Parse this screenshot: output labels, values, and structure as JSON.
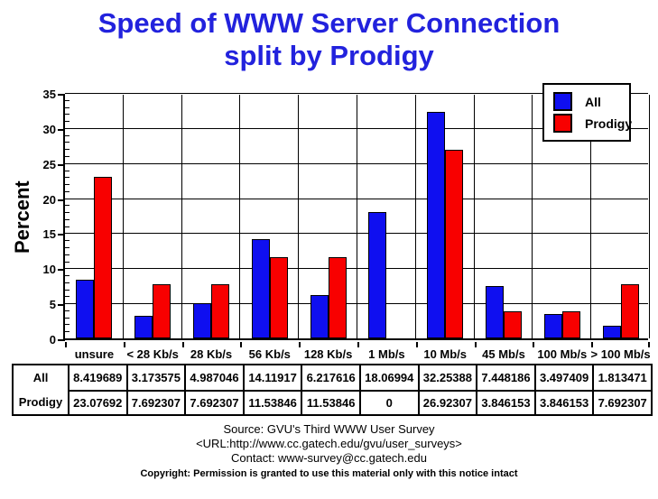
{
  "title": {
    "line1": "Speed of WWW Server Connection",
    "line2": "split by Prodigy",
    "color": "#2222dd"
  },
  "chart_data": {
    "type": "bar",
    "title": "Speed of WWW Server Connection split by Prodigy",
    "xlabel": "",
    "ylabel": "Percent",
    "ylim": [
      0,
      35
    ],
    "ytick_interval": 5,
    "yticks": [
      0,
      5,
      10,
      15,
      20,
      25,
      30,
      35
    ],
    "grid": true,
    "legend_position": "top-right",
    "categories": [
      "unsure",
      "< 28 Kb/s",
      "28 Kb/s",
      "56 Kb/s",
      "128 Kb/s",
      "1 Mb/s",
      "10 Mb/s",
      "45 Mb/s",
      "100 Mb/s",
      "> 100 Mb/s"
    ],
    "series": [
      {
        "name": "All",
        "color": "#0f0ff0",
        "values": [
          8.419689,
          3.173575,
          4.987046,
          14.11917,
          6.217616,
          18.06994,
          32.25388,
          7.448186,
          3.497409,
          1.813471
        ]
      },
      {
        "name": "Prodigy",
        "color": "#f80000",
        "values": [
          23.07692,
          7.692307,
          7.692307,
          11.53846,
          11.53846,
          0,
          26.92307,
          3.846153,
          3.846153,
          7.692307
        ]
      }
    ]
  },
  "table": {
    "rows": [
      {
        "label": "All",
        "cells": [
          "8.419689",
          "3.173575",
          "4.987046",
          "14.11917",
          "6.217616",
          "18.06994",
          "32.25388",
          "7.448186",
          "3.497409",
          "1.813471"
        ]
      },
      {
        "label": "Prodigy",
        "cells": [
          "23.07692",
          "7.692307",
          "7.692307",
          "11.53846",
          "11.53846",
          "0",
          "26.92307",
          "3.846153",
          "3.846153",
          "7.692307"
        ]
      }
    ]
  },
  "footer": {
    "source": "Source: GVU's Third WWW User Survey",
    "url": "<URL:http://www.cc.gatech.edu/gvu/user_surveys>",
    "contact": "Contact: www-survey@cc.gatech.edu",
    "copyright": "Copyright: Permission is granted to use this material only with this notice intact"
  }
}
